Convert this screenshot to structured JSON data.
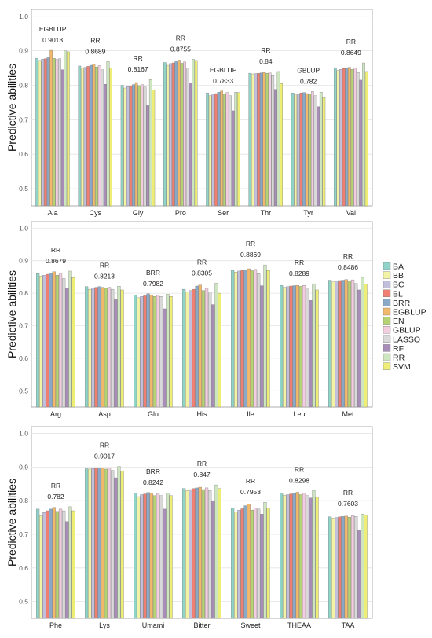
{
  "legend": {
    "position": "right",
    "items": [
      {
        "name": "BA",
        "color": "#8fd3c9"
      },
      {
        "name": "BB",
        "color": "#f3f3a5"
      },
      {
        "name": "BC",
        "color": "#c2bfdc"
      },
      {
        "name": "BL",
        "color": "#f07f73"
      },
      {
        "name": "BRR",
        "color": "#8aa8c8"
      },
      {
        "name": "EGBLUP",
        "color": "#f2b86b"
      },
      {
        "name": "EN",
        "color": "#b5d275"
      },
      {
        "name": "GBLUP",
        "color": "#f2cde0"
      },
      {
        "name": "LASSO",
        "color": "#d9d9d9"
      },
      {
        "name": "RF",
        "color": "#a88db8"
      },
      {
        "name": "RR",
        "color": "#cde6c0"
      },
      {
        "name": "SVM",
        "color": "#eeee77"
      }
    ]
  },
  "chart_data": [
    {
      "type": "bar",
      "ylabel": "Predictive abilities",
      "ylim": [
        0.45,
        1.02
      ],
      "yticks": [
        "0.5",
        "0.6",
        "0.7",
        "0.8",
        "0.9",
        "1.0"
      ],
      "grid": true,
      "categories": [
        "Ala",
        "Cys",
        "Gly",
        "Pro",
        "Ser",
        "Thr",
        "Tyr",
        "Val"
      ],
      "annotations": [
        {
          "method": "EGBLUP",
          "value": "0.9013"
        },
        {
          "method": "RR",
          "value": "0.8689"
        },
        {
          "method": "RR",
          "value": "0.8167"
        },
        {
          "method": "RR",
          "value": "0.8755"
        },
        {
          "method": "EGBLUP",
          "value": "0.7833"
        },
        {
          "method": "RR",
          "value": "0.84"
        },
        {
          "method": "GBLUP",
          "value": "0.782"
        },
        {
          "method": "RR",
          "value": "0.8649"
        }
      ],
      "values": [
        [
          0.878,
          0.872,
          0.876,
          0.877,
          0.88,
          0.9013,
          0.878,
          0.875,
          0.877,
          0.845,
          0.9,
          0.897
        ],
        [
          0.856,
          0.85,
          0.852,
          0.855,
          0.858,
          0.862,
          0.853,
          0.857,
          0.845,
          0.803,
          0.8689,
          0.85
        ],
        [
          0.8,
          0.792,
          0.796,
          0.798,
          0.802,
          0.808,
          0.799,
          0.802,
          0.795,
          0.741,
          0.8167,
          0.787
        ],
        [
          0.866,
          0.858,
          0.863,
          0.865,
          0.87,
          0.873,
          0.864,
          0.868,
          0.85,
          0.806,
          0.8755,
          0.872
        ],
        [
          0.778,
          0.77,
          0.774,
          0.776,
          0.78,
          0.7833,
          0.775,
          0.779,
          0.77,
          0.726,
          0.78,
          0.779
        ],
        [
          0.835,
          0.833,
          0.834,
          0.835,
          0.836,
          0.837,
          0.835,
          0.836,
          0.828,
          0.788,
          0.84,
          0.805
        ],
        [
          0.778,
          0.772,
          0.774,
          0.778,
          0.779,
          0.776,
          0.775,
          0.782,
          0.77,
          0.738,
          0.78,
          0.764
        ],
        [
          0.851,
          0.843,
          0.846,
          0.849,
          0.851,
          0.852,
          0.846,
          0.85,
          0.837,
          0.815,
          0.8649,
          0.84
        ]
      ]
    },
    {
      "type": "bar",
      "ylabel": "Predictive abilities",
      "ylim": [
        0.45,
        1.02
      ],
      "yticks": [
        "0.5",
        "0.6",
        "0.7",
        "0.8",
        "0.9",
        "1.0"
      ],
      "grid": true,
      "categories": [
        "Arg",
        "Asp",
        "Glu",
        "His",
        "Ile",
        "Leu",
        "Met"
      ],
      "annotations": [
        {
          "method": "RR",
          "value": "0.8679"
        },
        {
          "method": "RR",
          "value": "0.8213"
        },
        {
          "method": "BRR",
          "value": "0.7982"
        },
        {
          "method": "RR",
          "value": "0.8305"
        },
        {
          "method": "RR",
          "value": "0.8869"
        },
        {
          "method": "RR",
          "value": "0.8289"
        },
        {
          "method": "RR",
          "value": "0.8486"
        }
      ],
      "values": [
        [
          0.86,
          0.853,
          0.855,
          0.858,
          0.861,
          0.866,
          0.855,
          0.862,
          0.845,
          0.815,
          0.8679,
          0.848
        ],
        [
          0.82,
          0.812,
          0.815,
          0.818,
          0.82,
          0.818,
          0.815,
          0.818,
          0.812,
          0.78,
          0.8213,
          0.81
        ],
        [
          0.795,
          0.786,
          0.79,
          0.792,
          0.7982,
          0.795,
          0.79,
          0.795,
          0.79,
          0.752,
          0.797,
          0.79
        ],
        [
          0.812,
          0.804,
          0.808,
          0.812,
          0.822,
          0.825,
          0.808,
          0.815,
          0.804,
          0.765,
          0.8305,
          0.8
        ],
        [
          0.87,
          0.865,
          0.868,
          0.87,
          0.872,
          0.875,
          0.869,
          0.873,
          0.86,
          0.823,
          0.8869,
          0.87
        ],
        [
          0.824,
          0.818,
          0.82,
          0.822,
          0.823,
          0.824,
          0.821,
          0.824,
          0.815,
          0.778,
          0.8289,
          0.81
        ],
        [
          0.84,
          0.835,
          0.838,
          0.839,
          0.84,
          0.842,
          0.838,
          0.841,
          0.83,
          0.81,
          0.8486,
          0.828
        ]
      ]
    },
    {
      "type": "bar",
      "ylabel": "Predictive abilities",
      "ylim": [
        0.45,
        1.02
      ],
      "yticks": [
        "0.5",
        "0.6",
        "0.7",
        "0.8",
        "0.9",
        "1.0"
      ],
      "grid": true,
      "categories": [
        "Phe",
        "Lys",
        "Umami",
        "Bitter",
        "Sweet",
        "THEAA",
        "TAA"
      ],
      "annotations": [
        {
          "method": "RR",
          "value": "0.782"
        },
        {
          "method": "RR",
          "value": "0.9017"
        },
        {
          "method": "BRR",
          "value": "0.8242"
        },
        {
          "method": "RR",
          "value": "0.847"
        },
        {
          "method": "RR",
          "value": "0.7953"
        },
        {
          "method": "RR",
          "value": "0.8298"
        },
        {
          "method": "RR",
          "value": "0.7603"
        }
      ],
      "values": [
        [
          0.775,
          0.755,
          0.765,
          0.77,
          0.775,
          0.78,
          0.768,
          0.775,
          0.77,
          0.738,
          0.782,
          0.77
        ],
        [
          0.895,
          0.894,
          0.896,
          0.897,
          0.897,
          0.898,
          0.894,
          0.897,
          0.89,
          0.868,
          0.9017,
          0.888
        ],
        [
          0.822,
          0.812,
          0.818,
          0.82,
          0.8242,
          0.822,
          0.815,
          0.82,
          0.815,
          0.775,
          0.823,
          0.815
        ],
        [
          0.836,
          0.83,
          0.833,
          0.836,
          0.838,
          0.84,
          0.833,
          0.838,
          0.83,
          0.8,
          0.847,
          0.836
        ],
        [
          0.778,
          0.766,
          0.772,
          0.776,
          0.785,
          0.79,
          0.772,
          0.778,
          0.775,
          0.76,
          0.7953,
          0.778
        ],
        [
          0.822,
          0.816,
          0.818,
          0.82,
          0.823,
          0.825,
          0.818,
          0.822,
          0.815,
          0.808,
          0.8298,
          0.81
        ],
        [
          0.752,
          0.748,
          0.75,
          0.752,
          0.753,
          0.754,
          0.751,
          0.755,
          0.753,
          0.712,
          0.7603,
          0.758
        ]
      ]
    }
  ]
}
